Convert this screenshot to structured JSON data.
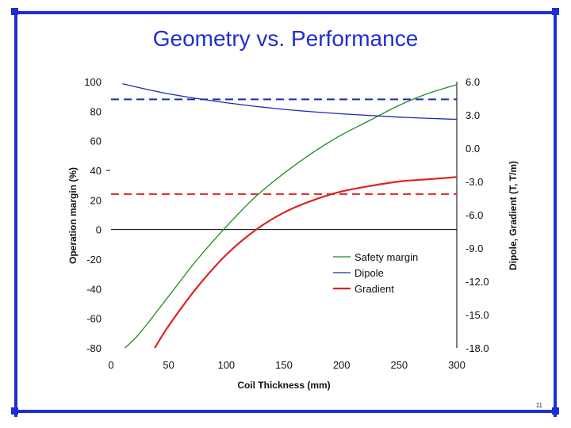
{
  "slide": {
    "title": "Geometry vs. Performance",
    "page_number": "11",
    "frame_color": "#1f2ed1"
  },
  "chart_data": {
    "type": "line",
    "xlabel": "Coil Thickness (mm)",
    "ylabel_left": "Operation margin (%)",
    "ylabel_right": "Dipole, Gradient (T, T/m)",
    "xlim": [
      0,
      300
    ],
    "ylim_left": [
      -80,
      100
    ],
    "ylim_right": [
      -18.0,
      6.0
    ],
    "x_ticks": [
      "0",
      "50",
      "100",
      "150",
      "200",
      "250",
      "300"
    ],
    "y_left_ticks": [
      "100",
      "80",
      "60",
      "40",
      "20",
      "0",
      "-20",
      "-40",
      "-60",
      "-80"
    ],
    "y_right_ticks": [
      "6.0",
      "3.0",
      "0.0",
      "-3.0",
      "-6.0",
      "-9.0",
      "-12.0",
      "-15.0",
      "-18.0"
    ],
    "legend_position": "lower-right",
    "grid": false,
    "series": [
      {
        "name": "Safety margin",
        "axis": "left",
        "color": "#1e8a1e",
        "style": "solid",
        "points": [
          [
            12,
            -80
          ],
          [
            25,
            -70
          ],
          [
            50,
            -45
          ],
          [
            75,
            -20
          ],
          [
            100,
            2
          ],
          [
            125,
            22
          ],
          [
            150,
            38
          ],
          [
            175,
            52
          ],
          [
            200,
            64
          ],
          [
            225,
            74
          ],
          [
            250,
            84
          ],
          [
            275,
            92
          ],
          [
            300,
            98
          ]
        ]
      },
      {
        "name": "Dipole",
        "axis": "right",
        "color": "#1a2bb0",
        "style": "solid",
        "points": [
          [
            10,
            5.8
          ],
          [
            50,
            4.9
          ],
          [
            100,
            4.1
          ],
          [
            150,
            3.5
          ],
          [
            200,
            3.1
          ],
          [
            250,
            2.8
          ],
          [
            300,
            2.6
          ]
        ]
      },
      {
        "name": "Gradient",
        "axis": "right",
        "color": "#dd2222",
        "style": "solid",
        "points": [
          [
            38,
            -18.0
          ],
          [
            50,
            -16.0
          ],
          [
            75,
            -12.5
          ],
          [
            100,
            -9.6
          ],
          [
            125,
            -7.4
          ],
          [
            150,
            -5.8
          ],
          [
            175,
            -4.7
          ],
          [
            200,
            -3.9
          ],
          [
            225,
            -3.4
          ],
          [
            250,
            -3.0
          ],
          [
            275,
            -2.8
          ],
          [
            300,
            -2.6
          ]
        ]
      }
    ],
    "reference_lines": [
      {
        "color": "#1a2bb0",
        "style": "dashed",
        "axis": "left",
        "value": 88
      },
      {
        "color": "#dd2222",
        "style": "dashed",
        "axis": "left",
        "value": 24
      }
    ]
  }
}
